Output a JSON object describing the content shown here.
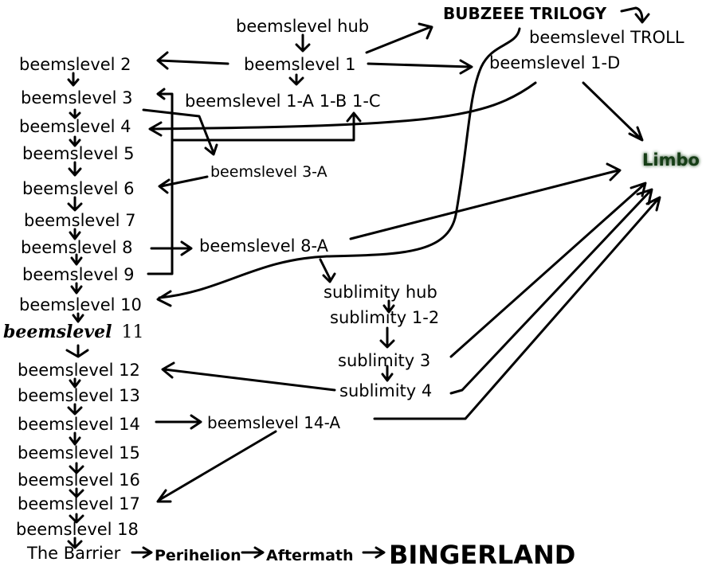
{
  "nodes": {
    "hub": "beemslevel hub",
    "bubzeee": "BUBZEEE TRILOGY",
    "troll": "beemslevel TROLL",
    "l1": "beemslevel 1",
    "l1d": "beemslevel 1-D",
    "l2": "beemslevel 2",
    "l3": "beemslevel 3",
    "l1abc": "beemslevel 1-A 1-B 1-C",
    "l4": "beemslevel 4",
    "l5": "beemslevel 5",
    "l3a": "beemslevel 3-A",
    "l6": "beemslevel 6",
    "l7": "beemslevel 7",
    "l8": "beemslevel 8",
    "l8a": "beemslevel 8-A",
    "l9": "beemslevel 9",
    "l10": "beemslevel 10",
    "l11_word": "beemslevel",
    "l11_num": "11",
    "subhub": "sublimity hub",
    "sub12": "sublimity 1-2",
    "sub3": "sublimity 3",
    "sub4": "sublimity 4",
    "l12": "beemslevel 12",
    "l13": "beemslevel 13",
    "l14": "beemslevel 14",
    "l14a": "beemslevel 14-A",
    "l15": "beemslevel 15",
    "l16": "beemslevel 16",
    "l17": "beemslevel 17",
    "l18": "beemslevel 18",
    "barrier": "The Barrier",
    "perihelion": "Perihelion",
    "aftermath": "Aftermath",
    "bingerland": "BINGERLAND",
    "limbo": "Limbo"
  },
  "colors": {
    "text": "#000000",
    "line": "#000000",
    "limbo_glow": "#c8e6c9"
  }
}
